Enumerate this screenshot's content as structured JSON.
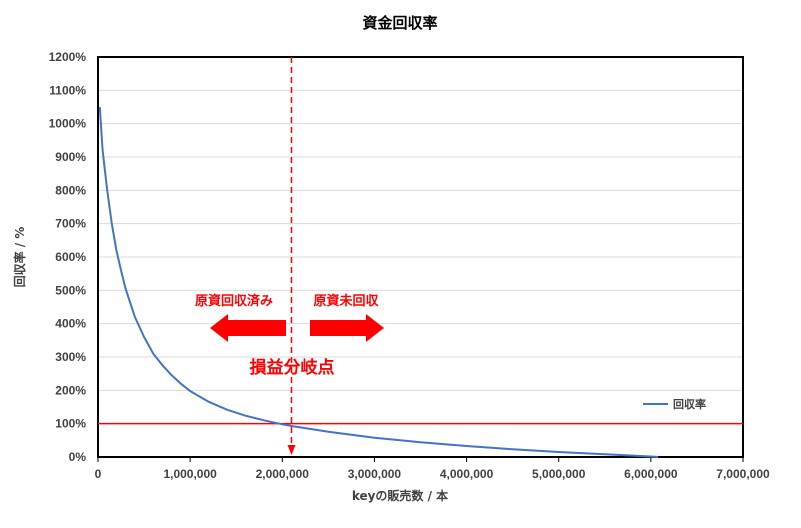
{
  "chart_data": {
    "type": "line",
    "title": "資金回収率",
    "xlabel": "keyの販売数 / 本",
    "ylabel": "回収率 / %",
    "xlim": [
      0,
      7000000
    ],
    "ylim": [
      0,
      12
    ],
    "x_ticks": [
      "0",
      "1,000,000",
      "2,000,000",
      "3,000,000",
      "4,000,000",
      "5,000,000",
      "6,000,000",
      "7,000,000"
    ],
    "y_ticks": [
      "0%",
      "100%",
      "200%",
      "300%",
      "400%",
      "500%",
      "600%",
      "700%",
      "800%",
      "900%",
      "1000%",
      "1100%",
      "1200%"
    ],
    "grid": true,
    "legend_position": "right",
    "series": [
      {
        "name": "回収率",
        "color": "#4472C4",
        "x": [
          20000,
          50000,
          100000,
          150000,
          200000,
          250000,
          300000,
          400000,
          500000,
          600000,
          700000,
          800000,
          900000,
          1000000,
          1200000,
          1400000,
          1600000,
          1800000,
          2000000,
          2100000,
          2500000,
          3000000,
          3500000,
          4000000,
          4500000,
          5000000,
          5500000,
          6000000,
          6080000
        ],
        "y": [
          10.5,
          9.2,
          8.0,
          7.0,
          6.2,
          5.6,
          5.05,
          4.2,
          3.6,
          3.1,
          2.75,
          2.45,
          2.2,
          1.98,
          1.66,
          1.42,
          1.24,
          1.1,
          0.98,
          0.93,
          0.76,
          0.58,
          0.44,
          0.33,
          0.23,
          0.15,
          0.08,
          0.015,
          0.0
        ]
      }
    ],
    "reference_lines": [
      {
        "orientation": "horizontal",
        "y": 1.0,
        "color": "#FF0000",
        "style": "solid"
      },
      {
        "orientation": "vertical",
        "x": 2100000,
        "color": "#FF0000",
        "style": "dashed"
      }
    ],
    "annotations": {
      "left_label": "原資回収済み",
      "right_label": "原資未回収",
      "center_label": "損益分岐点"
    },
    "annotation_color": "#FF0000"
  }
}
